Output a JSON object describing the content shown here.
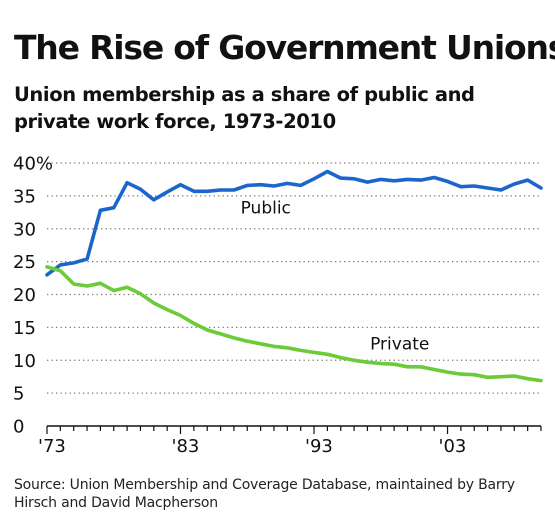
{
  "header": {
    "title": "The Rise of Government Unions",
    "subtitle": "Union membership as a share of public and private work force, 1973-2010"
  },
  "footer": {
    "source": "Source: Union Membership and Coverage Database, maintained by Barry Hirsch and David Macpherson"
  },
  "colors": {
    "public": "#1a66cc",
    "private": "#6ccb38",
    "grid": "#777777",
    "axis": "#111111"
  },
  "chart_data": {
    "type": "line",
    "title": "The Rise of Government Unions",
    "subtitle": "Union membership as a share of public and private work force, 1973-2010",
    "xlabel": "",
    "ylabel": "",
    "xlim": [
      1973,
      2010
    ],
    "ylim": [
      0,
      40
    ],
    "y_ticks": [
      0,
      5,
      10,
      15,
      20,
      25,
      30,
      35,
      40
    ],
    "y_tick_labels": [
      "0",
      "5",
      "10",
      "15",
      "20",
      "25",
      "30",
      "35",
      "40%"
    ],
    "x_ticks": [
      1973,
      1983,
      1993,
      2003
    ],
    "x_tick_labels": [
      "'73",
      "'83",
      "'93",
      "'03"
    ],
    "grid": "horizontal-dotted",
    "legend": "inline-labels",
    "x": [
      1973,
      1974,
      1975,
      1976,
      1977,
      1978,
      1979,
      1980,
      1981,
      1982,
      1983,
      1984,
      1985,
      1986,
      1987,
      1988,
      1989,
      1990,
      1991,
      1992,
      1993,
      1994,
      1995,
      1996,
      1997,
      1998,
      1999,
      2000,
      2001,
      2002,
      2003,
      2004,
      2005,
      2006,
      2007,
      2008,
      2009,
      2010
    ],
    "series": [
      {
        "name": "Public",
        "values": [
          23.0,
          24.5,
          24.8,
          25.4,
          32.8,
          33.2,
          37.0,
          36.0,
          34.4,
          35.6,
          36.7,
          35.7,
          35.7,
          35.9,
          35.9,
          36.6,
          36.7,
          36.5,
          36.9,
          36.6,
          37.6,
          38.7,
          37.7,
          37.6,
          37.1,
          37.5,
          37.3,
          37.5,
          37.4,
          37.8,
          37.2,
          36.4,
          36.5,
          36.2,
          35.9,
          36.8,
          37.4,
          36.2
        ]
      },
      {
        "name": "Private",
        "values": [
          24.2,
          23.6,
          21.6,
          21.3,
          21.7,
          20.6,
          21.1,
          20.1,
          18.7,
          17.7,
          16.8,
          15.6,
          14.6,
          14.0,
          13.4,
          12.9,
          12.5,
          12.1,
          11.9,
          11.5,
          11.2,
          10.9,
          10.4,
          10.0,
          9.7,
          9.5,
          9.4,
          9.0,
          9.0,
          8.6,
          8.2,
          7.9,
          7.8,
          7.4,
          7.5,
          7.6,
          7.2,
          6.9
        ]
      }
    ]
  }
}
